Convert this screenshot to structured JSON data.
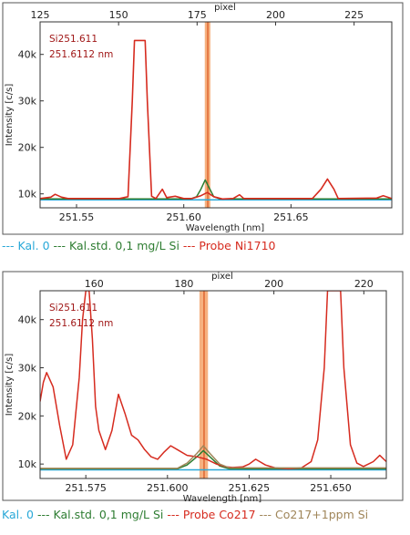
{
  "chart_data": [
    {
      "type": "line",
      "top_axis": {
        "label": "pixel",
        "ticks": [
          125,
          150,
          175,
          200,
          225
        ],
        "range": [
          125,
          237
        ]
      },
      "xlabel": "Wavelength [nm]",
      "ylabel": "Intensity [c/s]",
      "xlim": [
        251.533,
        251.697
      ],
      "ylim": [
        7000,
        47000
      ],
      "x_ticks": [
        251.55,
        251.6,
        251.65
      ],
      "x_tick_labels": [
        "251.55",
        "251.60",
        "251.65"
      ],
      "y_ticks": [
        10000,
        20000,
        30000,
        40000
      ],
      "y_tick_labels": [
        "10k",
        "20k",
        "30k",
        "40k"
      ],
      "annotations": [
        "Si251.611",
        "251.6112 nm"
      ],
      "highlight_band": {
        "from": 251.6098,
        "to": 251.6124,
        "center": 251.6112
      },
      "series": [
        {
          "name": "Kal. 0",
          "color": "#29a8d8",
          "points": [
            [
              251.533,
              8700
            ],
            [
              251.6,
              8700
            ],
            [
              251.697,
              8700
            ]
          ]
        },
        {
          "name": "Kal.std. 0,1 mg/L Si",
          "color": "#2e7d32",
          "points": [
            [
              251.533,
              8900
            ],
            [
              251.56,
              8900
            ],
            [
              251.603,
              8900
            ],
            [
              251.606,
              9400
            ],
            [
              251.608,
              11000
            ],
            [
              251.61,
              13000
            ],
            [
              251.612,
              11200
            ],
            [
              251.614,
              9400
            ],
            [
              251.617,
              8900
            ],
            [
              251.697,
              8900
            ]
          ]
        },
        {
          "name": "Probe Ni1710",
          "color": "#d62b1f",
          "points": [
            [
              251.533,
              9000
            ],
            [
              251.538,
              9300
            ],
            [
              251.54,
              9900
            ],
            [
              251.543,
              9300
            ],
            [
              251.546,
              9000
            ],
            [
              251.57,
              9000
            ],
            [
              251.574,
              9400
            ],
            [
              251.576,
              30000
            ],
            [
              251.577,
              43000
            ],
            [
              251.582,
              43000
            ],
            [
              251.583,
              30000
            ],
            [
              251.585,
              9500
            ],
            [
              251.587,
              9000
            ],
            [
              251.59,
              11000
            ],
            [
              251.592,
              9200
            ],
            [
              251.596,
              9500
            ],
            [
              251.6,
              9000
            ],
            [
              251.604,
              9000
            ],
            [
              251.608,
              9600
            ],
            [
              251.611,
              10300
            ],
            [
              251.614,
              9400
            ],
            [
              251.618,
              8900
            ],
            [
              251.623,
              9000
            ],
            [
              251.626,
              9800
            ],
            [
              251.628,
              9000
            ],
            [
              251.66,
              9000
            ],
            [
              251.664,
              11000
            ],
            [
              251.667,
              13200
            ],
            [
              251.67,
              11000
            ],
            [
              251.672,
              9000
            ],
            [
              251.69,
              9100
            ],
            [
              251.693,
              9600
            ],
            [
              251.697,
              9000
            ]
          ]
        }
      ]
    },
    {
      "type": "line",
      "top_axis": {
        "label": "pixel",
        "ticks": [
          160,
          180,
          200,
          220
        ],
        "range": [
          148,
          225
        ]
      },
      "xlabel": "Wavelength [nm]",
      "ylabel": "Intensity [c/s]",
      "xlim": [
        251.561,
        251.667
      ],
      "ylim": [
        7000,
        46000
      ],
      "x_ticks": [
        251.575,
        251.6,
        251.625,
        251.65
      ],
      "x_tick_labels": [
        "251.575",
        "251.600",
        "251.625",
        "251.650"
      ],
      "y_ticks": [
        10000,
        20000,
        30000,
        40000
      ],
      "y_tick_labels": [
        "10k",
        "20k",
        "30k",
        "40k"
      ],
      "annotations": [
        "Si251.611",
        "251.6112 nm"
      ],
      "highlight_band": {
        "from": 251.6098,
        "to": 251.6124,
        "center": 251.6112
      },
      "series": [
        {
          "name": "Kal. 0",
          "color": "#29a8d8",
          "points": [
            [
              251.561,
              8800
            ],
            [
              251.667,
              8800
            ]
          ]
        },
        {
          "name": "Kal.std. 0,1 mg/L Si",
          "color": "#2e7d32",
          "points": [
            [
              251.561,
              9000
            ],
            [
              251.603,
              9000
            ],
            [
              251.606,
              9800
            ],
            [
              251.609,
              11500
            ],
            [
              251.611,
              12800
            ],
            [
              251.613,
              11500
            ],
            [
              251.616,
              9600
            ],
            [
              251.619,
              9000
            ],
            [
              251.667,
              9000
            ]
          ]
        },
        {
          "name": "Probe Co217",
          "color": "#d62b1f",
          "points": [
            [
              251.561,
              23000
            ],
            [
              251.562,
              27000
            ],
            [
              251.563,
              29000
            ],
            [
              251.565,
              26000
            ],
            [
              251.567,
              18000
            ],
            [
              251.569,
              11000
            ],
            [
              251.571,
              14000
            ],
            [
              251.573,
              28000
            ],
            [
              251.574,
              40000
            ],
            [
              251.575,
              46000
            ],
            [
              251.576,
              46000
            ],
            [
              251.577,
              36000
            ],
            [
              251.578,
              22000
            ],
            [
              251.579,
              17000
            ],
            [
              251.581,
              13000
            ],
            [
              251.583,
              17000
            ],
            [
              251.585,
              24500
            ],
            [
              251.587,
              20500
            ],
            [
              251.589,
              16000
            ],
            [
              251.591,
              15000
            ],
            [
              251.593,
              13000
            ],
            [
              251.595,
              11500
            ],
            [
              251.597,
              11000
            ],
            [
              251.599,
              12500
            ],
            [
              251.601,
              13800
            ],
            [
              251.603,
              13000
            ],
            [
              251.606,
              11800
            ],
            [
              251.609,
              11500
            ],
            [
              251.612,
              11000
            ],
            [
              251.615,
              10000
            ],
            [
              251.618,
              9400
            ],
            [
              251.62,
              9300
            ],
            [
              251.623,
              9400
            ],
            [
              251.625,
              10000
            ],
            [
              251.627,
              11000
            ],
            [
              251.63,
              9800
            ],
            [
              251.633,
              9200
            ],
            [
              251.637,
              9000
            ],
            [
              251.641,
              9200
            ],
            [
              251.644,
              10500
            ],
            [
              251.646,
              15000
            ],
            [
              251.648,
              30000
            ],
            [
              251.649,
              46000
            ],
            [
              251.653,
              46000
            ],
            [
              251.654,
              30000
            ],
            [
              251.656,
              14000
            ],
            [
              251.658,
              10200
            ],
            [
              251.66,
              9500
            ],
            [
              251.663,
              10500
            ],
            [
              251.665,
              11800
            ],
            [
              251.667,
              10500
            ]
          ]
        },
        {
          "name": "Co217+1ppm Si",
          "color": "#a0865a",
          "points": [
            [
              251.561,
              9100
            ],
            [
              251.603,
              9100
            ],
            [
              251.606,
              10200
            ],
            [
              251.609,
              12200
            ],
            [
              251.611,
              13800
            ],
            [
              251.613,
              12200
            ],
            [
              251.616,
              10000
            ],
            [
              251.619,
              9200
            ],
            [
              251.667,
              9200
            ]
          ]
        }
      ]
    }
  ],
  "legend_1": {
    "items": [
      {
        "dash": "---",
        "name": "Kal. 0",
        "color": "#29a8d8"
      },
      {
        "dash": "---",
        "name": "Kal.std. 0,1 mg/L Si",
        "color": "#2e7d32"
      },
      {
        "dash": "---",
        "name": "Probe Ni1710",
        "color": "#d62b1f"
      }
    ]
  },
  "legend_2": {
    "items": [
      {
        "dash": "",
        "name": "Kal. 0",
        "color": "#29a8d8"
      },
      {
        "dash": "---",
        "name": "Kal.std. 0,1 mg/L Si",
        "color": "#2e7d32"
      },
      {
        "dash": "---",
        "name": "Probe Co217",
        "color": "#d62b1f"
      },
      {
        "dash": "---",
        "name": "Co217+1ppm Si",
        "color": "#a0865a"
      }
    ]
  }
}
